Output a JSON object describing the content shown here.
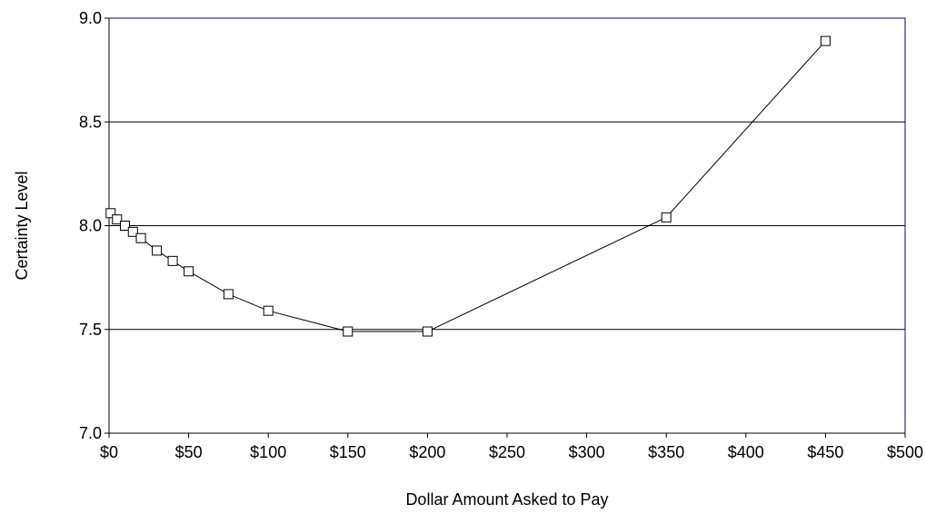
{
  "chart_data": {
    "type": "line",
    "title": "",
    "xlabel": "Dollar Amount Asked to Pay",
    "ylabel": "Certainty Level",
    "xlim": [
      0,
      500
    ],
    "ylim": [
      7.0,
      9.0
    ],
    "x_ticks": [
      {
        "value": 0,
        "label": "$0"
      },
      {
        "value": 50,
        "label": "$50"
      },
      {
        "value": 100,
        "label": "$100"
      },
      {
        "value": 150,
        "label": "$150"
      },
      {
        "value": 200,
        "label": "$200"
      },
      {
        "value": 250,
        "label": "$250"
      },
      {
        "value": 300,
        "label": "$300"
      },
      {
        "value": 350,
        "label": "$350"
      },
      {
        "value": 400,
        "label": "$400"
      },
      {
        "value": 450,
        "label": "$450"
      },
      {
        "value": 500,
        "label": "$500"
      }
    ],
    "y_ticks": [
      {
        "value": 7.0,
        "label": "7.0"
      },
      {
        "value": 7.5,
        "label": "7.5"
      },
      {
        "value": 8.0,
        "label": "8.0"
      },
      {
        "value": 8.5,
        "label": "8.5"
      },
      {
        "value": 9.0,
        "label": "9.0"
      }
    ],
    "grid": "horizontal",
    "marker": "hollow-square",
    "series": [
      {
        "points": [
          {
            "x": 1,
            "y": 8.06
          },
          {
            "x": 5,
            "y": 8.03
          },
          {
            "x": 10,
            "y": 8.0
          },
          {
            "x": 15,
            "y": 7.97
          },
          {
            "x": 20,
            "y": 7.94
          },
          {
            "x": 30,
            "y": 7.88
          },
          {
            "x": 40,
            "y": 7.83
          },
          {
            "x": 50,
            "y": 7.78
          },
          {
            "x": 75,
            "y": 7.67
          },
          {
            "x": 100,
            "y": 7.59
          },
          {
            "x": 150,
            "y": 7.49
          },
          {
            "x": 200,
            "y": 7.49
          },
          {
            "x": 350,
            "y": 8.04
          },
          {
            "x": 450,
            "y": 8.89
          }
        ]
      }
    ],
    "colors": {
      "line": "#000000",
      "marker_fill": "#ffffff",
      "gridline": "#000000",
      "plot_border": "#000080",
      "background": "#ffffff"
    }
  }
}
